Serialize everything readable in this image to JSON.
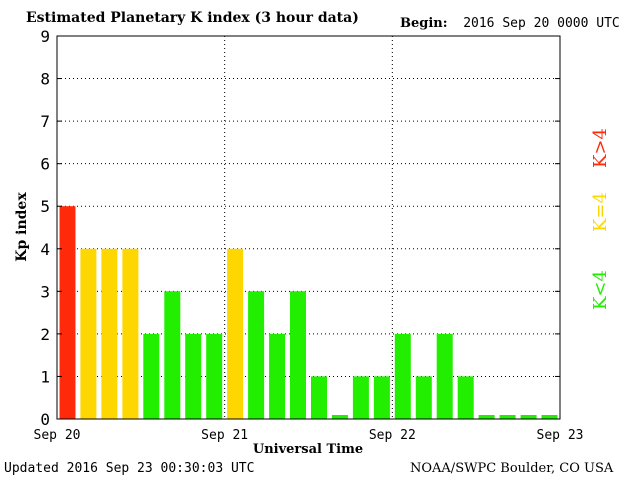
{
  "header": {
    "title": "Estimated Planetary K index (3 hour data)",
    "begin_label": "Begin:",
    "begin_value": "2016 Sep 20 0000 UTC"
  },
  "footer": {
    "updated": "Updated 2016 Sep 23 00:30:03 UTC",
    "credit": "NOAA/SWPC Boulder, CO USA"
  },
  "legend": {
    "items": [
      {
        "label": "K>4",
        "color": "#ff2a0a"
      },
      {
        "label": "K=4",
        "color": "#ffd700"
      },
      {
        "label": "K<4",
        "color": "#22ee00"
      }
    ]
  },
  "chart_data": {
    "type": "bar",
    "ylabel": "Kp index",
    "xlabel": "Universal Time",
    "ylim": [
      0,
      9
    ],
    "yticks": [
      "0",
      "1",
      "2",
      "3",
      "4",
      "5",
      "6",
      "7",
      "8",
      "9"
    ],
    "xticks": [
      "Sep 20",
      "Sep 21",
      "Sep 22",
      "Sep 23"
    ],
    "grid": true,
    "bar_interval_hours": 3,
    "values": [
      5,
      4,
      4,
      4,
      2,
      3,
      2,
      2,
      4,
      3,
      2,
      3,
      1,
      0,
      1,
      1,
      2,
      1,
      2,
      1,
      0,
      0,
      0,
      0
    ],
    "colors": {
      "above_4": "#ff2a0a",
      "equal_4": "#ffd700",
      "below_4": "#22ee00"
    }
  }
}
